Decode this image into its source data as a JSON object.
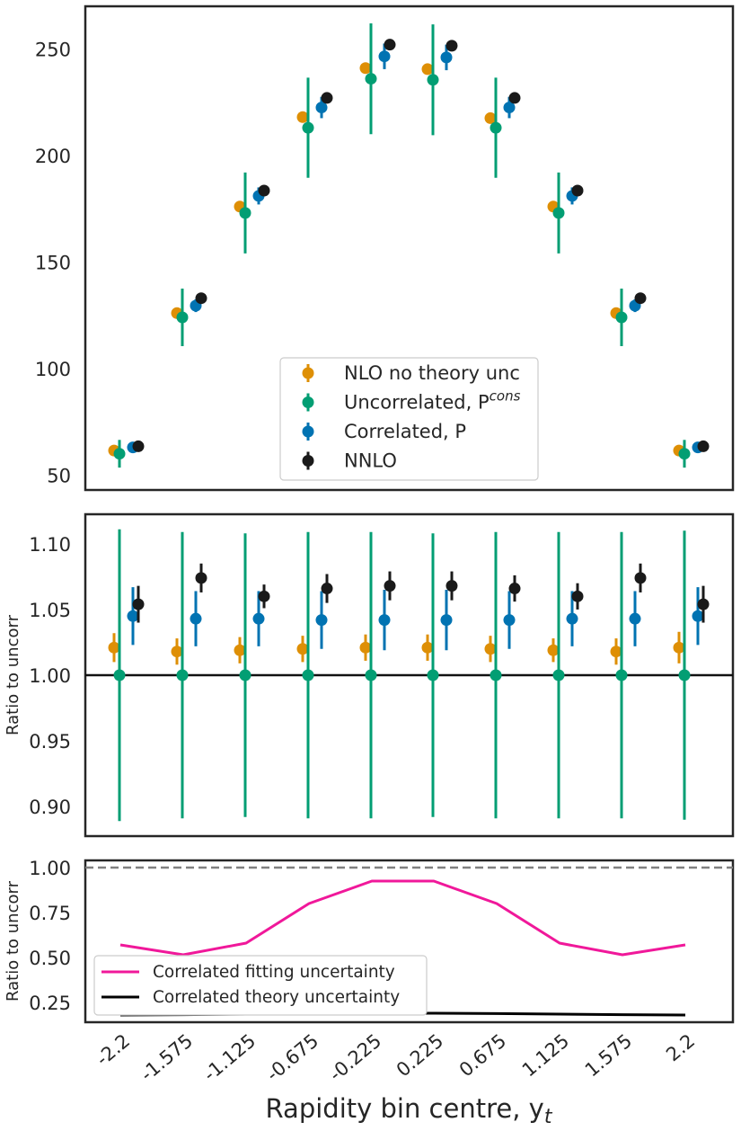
{
  "chart_data": [
    {
      "type": "scatter",
      "title": "",
      "xlabel": "",
      "ylabel": "",
      "categories": [
        "-2.2",
        "-1.575",
        "-1.125",
        "-0.675",
        "-0.225",
        "0.225",
        "0.675",
        "1.125",
        "1.575",
        "2.2"
      ],
      "ylim": [
        43,
        270
      ],
      "yticks": [
        50,
        100,
        150,
        200,
        250
      ],
      "legend_position": "lower-center",
      "series": [
        {
          "name": "NLO no theory unc",
          "color": "#de8f05",
          "values": [
            61.5,
            126,
            176,
            218,
            241,
            240.5,
            217.5,
            176,
            126,
            61.5
          ],
          "errors": [
            0.5,
            0.5,
            0.5,
            0.5,
            0.5,
            0.5,
            0.5,
            0.5,
            0.5,
            0.5
          ]
        },
        {
          "name": "Uncorrelated, P",
          "sup": "cons",
          "color": "#029e73",
          "values": [
            60,
            124,
            173,
            213,
            236,
            235.5,
            213,
            173,
            124,
            60
          ],
          "errors": [
            6.5,
            13.5,
            19,
            23.5,
            26,
            26,
            23.5,
            19,
            13.5,
            6.5
          ]
        },
        {
          "name": "Correlated, P",
          "color": "#0173b2",
          "values": [
            63,
            129.5,
            181,
            222.5,
            246.5,
            246,
            222.5,
            181,
            129.5,
            63
          ],
          "errors": [
            1.5,
            3,
            4,
            5,
            6,
            6,
            5,
            4,
            3,
            1.5
          ]
        },
        {
          "name": "NNLO",
          "color": "#1a1a1a",
          "values": [
            63.5,
            133,
            183.5,
            227,
            252,
            251.5,
            227,
            183.5,
            133,
            63.5
          ],
          "errors": [
            0.5,
            0.5,
            0.5,
            0.5,
            0.5,
            0.5,
            0.5,
            0.5,
            0.5,
            0.5
          ]
        }
      ]
    },
    {
      "type": "scatter",
      "title": "",
      "xlabel": "",
      "ylabel": "Ratio to uncorr",
      "categories": [
        "-2.2",
        "-1.575",
        "-1.125",
        "-0.675",
        "-0.225",
        "0.225",
        "0.675",
        "1.125",
        "1.575",
        "2.2"
      ],
      "ylim": [
        0.8775,
        1.1225
      ],
      "yticks": [
        0.9,
        0.95,
        1.0,
        1.05,
        1.1
      ],
      "ytick_labels": [
        "0.90",
        "0.95",
        "1.00",
        "1.05",
        "1.10"
      ],
      "reference_line": 1.0,
      "series": [
        {
          "name": "NLO no theory unc",
          "color": "#de8f05",
          "values": [
            1.021,
            1.018,
            1.019,
            1.02,
            1.021,
            1.021,
            1.02,
            1.019,
            1.018,
            1.021
          ],
          "errors": [
            0.011,
            0.01,
            0.01,
            0.01,
            0.01,
            0.01,
            0.01,
            0.009,
            0.01,
            0.012
          ]
        },
        {
          "name": "Uncorrelated, P",
          "sup": "cons",
          "color": "#029e73",
          "values": [
            1.0,
            1.0,
            1.0,
            1.0,
            1.0,
            1.0,
            1.0,
            1.0,
            1.0,
            1.0
          ],
          "errors": [
            0.111,
            0.109,
            0.108,
            0.109,
            0.109,
            0.108,
            0.109,
            0.109,
            0.109,
            0.11
          ]
        },
        {
          "name": "Correlated, P",
          "color": "#0173b2",
          "values": [
            1.045,
            1.043,
            1.043,
            1.042,
            1.042,
            1.042,
            1.042,
            1.043,
            1.043,
            1.045
          ],
          "errors": [
            0.022,
            0.021,
            0.021,
            0.022,
            0.023,
            0.023,
            0.022,
            0.021,
            0.021,
            0.022
          ]
        },
        {
          "name": "NNLO",
          "color": "#1a1a1a",
          "values": [
            1.054,
            1.074,
            1.06,
            1.066,
            1.068,
            1.068,
            1.066,
            1.06,
            1.074,
            1.054
          ],
          "errors": [
            0.014,
            0.011,
            0.009,
            0.011,
            0.011,
            0.011,
            0.01,
            0.01,
            0.011,
            0.014
          ]
        }
      ]
    },
    {
      "type": "line",
      "title": "",
      "xlabel": "Rapidity bin centre, y",
      "xlabel_sub": "t",
      "ylabel": "Ratio to uncorr",
      "categories": [
        "-2.2",
        "-1.575",
        "-1.125",
        "-0.675",
        "-0.225",
        "0.225",
        "0.675",
        "1.125",
        "1.575",
        "2.2"
      ],
      "ylim": [
        0.14,
        1.04
      ],
      "yticks": [
        0.25,
        0.5,
        0.75,
        1.0
      ],
      "ytick_labels": [
        "0.25",
        "0.50",
        "0.75",
        "1.00"
      ],
      "reference_line": 1.0,
      "legend_position": "lower-left",
      "series": [
        {
          "name": "Correlated fitting uncertainty",
          "color": "#f0189a",
          "values": [
            0.57,
            0.515,
            0.58,
            0.8,
            0.925,
            0.925,
            0.8,
            0.58,
            0.515,
            0.57
          ]
        },
        {
          "name": "Correlated theory uncertainty",
          "color": "#000000",
          "values": [
            0.18,
            0.182,
            0.185,
            0.188,
            0.19,
            0.19,
            0.188,
            0.185,
            0.182,
            0.18
          ]
        }
      ]
    }
  ]
}
